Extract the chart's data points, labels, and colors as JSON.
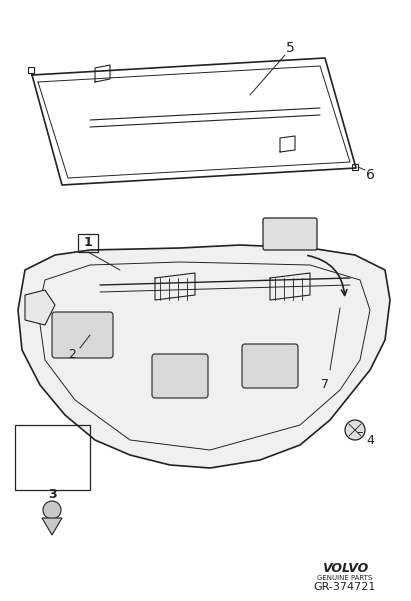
{
  "background_color": "#ffffff",
  "line_color": "#222222",
  "title_text": "",
  "volvo_text": "VOLVO",
  "genuine_parts_text": "GENUINE PARTS",
  "gr_text": "GR-374721",
  "label_5": "5",
  "label_6": "6",
  "label_1": "1",
  "label_2": "2",
  "label_3": "3",
  "label_4": "4",
  "label_7": "7",
  "fig_width": 4.11,
  "fig_height": 6.01,
  "dpi": 100
}
